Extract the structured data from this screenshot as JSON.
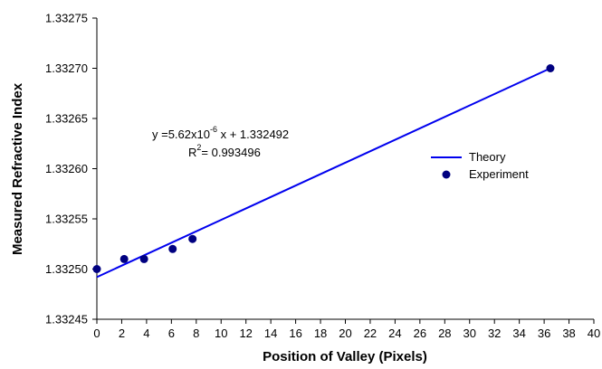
{
  "chart_data": {
    "type": "scatter",
    "xlabel": "Position of  Valley (Pixels)",
    "ylabel": "Measured Refractive Index",
    "xlim": [
      0,
      40
    ],
    "ylim": [
      1.33245,
      1.33275
    ],
    "x_ticks": [
      "0",
      "2",
      "4",
      "6",
      "8",
      "10",
      "12",
      "14",
      "16",
      "18",
      "20",
      "22",
      "24",
      "26",
      "28",
      "30",
      "32",
      "34",
      "36",
      "38",
      "40"
    ],
    "y_ticks": [
      "1.33245",
      "1.33250",
      "1.33255",
      "1.33260",
      "1.33265",
      "1.33270",
      "1.33275"
    ],
    "grid": false,
    "legend_position": "right",
    "series": [
      {
        "name": "Theory",
        "kind": "line",
        "color": "#0000ee",
        "x": [
          0,
          36.5
        ],
        "y": [
          1.332492,
          1.3327
        ]
      },
      {
        "name": "Experiment",
        "kind": "scatter",
        "color": "#000080",
        "x": [
          0,
          2.2,
          3.8,
          6.1,
          7.7,
          36.5
        ],
        "y": [
          1.3325,
          1.33251,
          1.33251,
          1.33252,
          1.33253,
          1.3327
        ]
      }
    ],
    "annotation": {
      "equation_prefix": "y =5.62x10",
      "equation_exponent": "-6",
      "equation_suffix": " x + 1.332492",
      "r2_prefix": "R",
      "r2_exponent": "2",
      "r2_suffix": "= 0.993496"
    }
  }
}
